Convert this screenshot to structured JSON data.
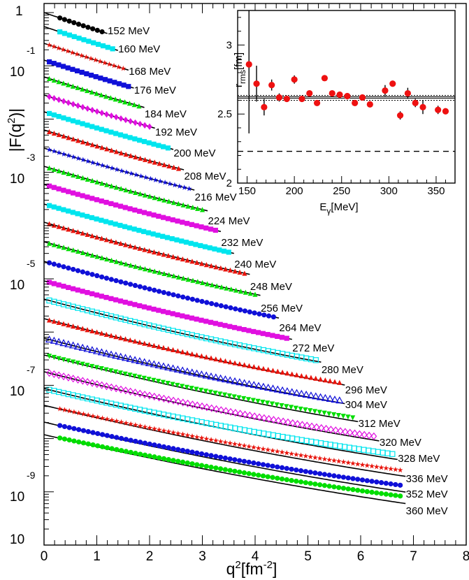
{
  "chart_data": [
    {
      "type": "scatter",
      "ylabel": "|F(q²)|",
      "xlabel": "q²[fm⁻²]",
      "ylabel_parts": {
        "pre": "|F(q",
        "sup": "2",
        "post": ")|"
      },
      "xlabel_parts": {
        "pre": "q",
        "sup1": "2",
        "mid": "[fm",
        "sup2": "-2",
        "post": "]"
      },
      "x_ticks": [
        "0",
        "1",
        "2",
        "3",
        "4",
        "5",
        "6",
        "7",
        "8"
      ],
      "y_ticks": [
        {
          "base": "1",
          "exp": ""
        },
        {
          "base": "10",
          "exp": "-1"
        },
        {
          "base": "10",
          "exp": "-3"
        },
        {
          "base": "10",
          "exp": "-5"
        },
        {
          "base": "10",
          "exp": "-7"
        },
        {
          "base": "10",
          "exp": "-9"
        },
        {
          "base": "10",
          "exp": ""
        }
      ],
      "xlim": [
        0,
        8
      ],
      "ylog": true,
      "series": [
        {
          "name": "152 MeV",
          "x0": 0.3,
          "x1": 1.1,
          "y0": 0.98,
          "color": "#000000",
          "marker": "circle"
        },
        {
          "name": "160 MeV",
          "x0": 0.3,
          "x1": 1.3,
          "y0": 0.9,
          "color": "#00e5ee",
          "marker": "square"
        },
        {
          "name": "168 MeV",
          "x0": 0.1,
          "x1": 1.5,
          "y0": 0.84,
          "color": "#e8140c",
          "marker": "star"
        },
        {
          "name": "176 MeV",
          "x0": 0.1,
          "x1": 1.6,
          "y0": 0.78,
          "color": "#1010d8",
          "marker": "square"
        },
        {
          "name": "184 MeV",
          "x0": 0.1,
          "x1": 1.8,
          "y0": 0.72,
          "color": "#00dd00",
          "marker": "tri"
        },
        {
          "name": "192 MeV",
          "x0": 0.1,
          "x1": 2.0,
          "y0": 0.66,
          "color": "#e010e0",
          "marker": "diamond"
        },
        {
          "name": "200 MeV",
          "x0": 0.1,
          "x1": 2.35,
          "y0": 0.61,
          "color": "#00e5ee",
          "marker": "square"
        },
        {
          "name": "208 MeV",
          "x0": 0.1,
          "x1": 2.55,
          "y0": 0.56,
          "color": "#e8140c",
          "marker": "tri"
        },
        {
          "name": "216 MeV",
          "x0": 0.1,
          "x1": 2.75,
          "y0": 0.51,
          "color": "#1010d8",
          "marker": "star"
        },
        {
          "name": "224 MeV",
          "x0": 0.1,
          "x1": 3.0,
          "y0": 0.46,
          "color": "#00dd00",
          "marker": "tri"
        },
        {
          "name": "232 MeV",
          "x0": 0.1,
          "x1": 3.25,
          "y0": 0.42,
          "color": "#e010e0",
          "marker": "square"
        },
        {
          "name": "240 MeV",
          "x0": 0.1,
          "x1": 3.5,
          "y0": 0.38,
          "color": "#00e5ee",
          "marker": "square"
        },
        {
          "name": "248 MeV",
          "x0": 0.1,
          "x1": 3.8,
          "y0": 0.34,
          "color": "#e8140c",
          "marker": "tri"
        },
        {
          "name": "256 MeV",
          "x0": 0.1,
          "x1": 4.0,
          "y0": 0.31,
          "color": "#00dd00",
          "marker": "tri"
        },
        {
          "name": "264 MeV",
          "x0": 0.1,
          "x1": 4.35,
          "y0": 0.28,
          "color": "#1010d8",
          "marker": "circle"
        },
        {
          "name": "272 MeV",
          "x0": 0.1,
          "x1": 4.6,
          "y0": 0.25,
          "color": "#e010e0",
          "marker": "square"
        },
        {
          "name": "280 MeV",
          "x0": 0.1,
          "x1": 5.15,
          "y0": 0.225,
          "color": "#00e5ee",
          "marker": "square-open"
        },
        {
          "name": "296 MeV",
          "x0": 0.1,
          "x1": 5.6,
          "y0": 0.2,
          "color": "#e8140c",
          "marker": "tri"
        },
        {
          "name": "304 MeV",
          "x0": 0.1,
          "x1": 5.6,
          "y0": 0.18,
          "color": "#1010d8",
          "marker": "tri-open"
        },
        {
          "name": "312 MeV",
          "x0": 0.1,
          "x1": 5.85,
          "y0": 0.16,
          "color": "#00dd00",
          "marker": "tri-down"
        },
        {
          "name": "320 MeV",
          "x0": 0.1,
          "x1": 6.25,
          "y0": 0.14,
          "color": "#e010e0",
          "marker": "diamond-open"
        },
        {
          "name": "328 MeV",
          "x0": 0.1,
          "x1": 6.6,
          "y0": 0.12,
          "color": "#00e5ee",
          "marker": "square-open"
        },
        {
          "name": "336 MeV",
          "x0": 0.3,
          "x1": 6.75,
          "y0": 0.105,
          "color": "#e8140c",
          "marker": "star"
        },
        {
          "name": "352 MeV",
          "x0": 0.3,
          "x1": 6.75,
          "y0": 0.095,
          "color": "#1010d8",
          "marker": "circle"
        },
        {
          "name": "360 MeV",
          "x0": 0.3,
          "x1": 6.75,
          "y0": 0.085,
          "color": "#00dd00",
          "marker": "circle"
        }
      ]
    },
    {
      "type": "scatter",
      "ylabel": "r_rms[fm]",
      "xlabel": "E_γ[MeV]",
      "ylabel_parts": {
        "pre": "r",
        "sub": "rms",
        "post": "[fm]"
      },
      "xlabel_parts": {
        "pre": "E",
        "sub": "γ",
        "post": "[MeV]"
      },
      "xlim": [
        140,
        370
      ],
      "ylim": [
        2,
        3.25
      ],
      "x_ticks": [
        "150",
        "200",
        "250",
        "300",
        "350"
      ],
      "y_ticks": [
        "2",
        "2.5",
        "3"
      ],
      "x": [
        152,
        160,
        168,
        176,
        184,
        192,
        200,
        208,
        216,
        224,
        232,
        240,
        248,
        256,
        264,
        272,
        280,
        296,
        304,
        312,
        320,
        328,
        336,
        352,
        360
      ],
      "y": [
        2.86,
        2.72,
        2.55,
        2.71,
        2.62,
        2.61,
        2.75,
        2.61,
        2.65,
        2.58,
        2.76,
        2.65,
        2.64,
        2.63,
        2.58,
        2.62,
        2.57,
        2.67,
        2.72,
        2.49,
        2.65,
        2.58,
        2.55,
        2.53,
        2.52
      ],
      "err": [
        0.5,
        0.13,
        0.06,
        0.04,
        0.03,
        0.02,
        0.03,
        0.02,
        0.02,
        0.02,
        0.02,
        0.02,
        0.02,
        0.02,
        0.02,
        0.02,
        0.02,
        0.04,
        0.02,
        0.03,
        0.04,
        0.03,
        0.05,
        0.03,
        0.02
      ],
      "bands": [
        2.6,
        2.615,
        2.625,
        2.635
      ],
      "dashed_line": 2.23,
      "marker_color": "#ee1111"
    }
  ]
}
